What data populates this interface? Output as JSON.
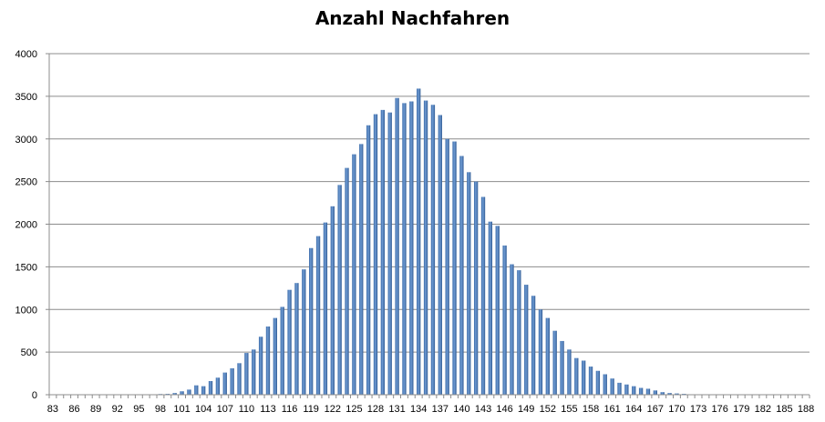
{
  "chart_data": {
    "type": "bar",
    "title": "Anzahl Nachfahren",
    "xlabel": "",
    "ylabel": "",
    "ylim": [
      0,
      4000
    ],
    "yticks": [
      0,
      500,
      1000,
      1500,
      2000,
      2500,
      3000,
      3500,
      4000
    ],
    "xtick_labels": [
      "83",
      "86",
      "89",
      "92",
      "95",
      "98",
      "101",
      "104",
      "107",
      "110",
      "113",
      "116",
      "119",
      "122",
      "125",
      "128",
      "131",
      "134",
      "137",
      "140",
      "143",
      "146",
      "149",
      "152",
      "155",
      "158",
      "161",
      "164",
      "167",
      "170",
      "173",
      "176",
      "179",
      "182",
      "185",
      "188"
    ],
    "grid": true,
    "legend": "none",
    "bar_color": "#4f81bd",
    "categories": [
      83,
      84,
      85,
      86,
      87,
      88,
      89,
      90,
      91,
      92,
      93,
      94,
      95,
      96,
      97,
      98,
      99,
      100,
      101,
      102,
      103,
      104,
      105,
      106,
      107,
      108,
      109,
      110,
      111,
      112,
      113,
      114,
      115,
      116,
      117,
      118,
      119,
      120,
      121,
      122,
      123,
      124,
      125,
      126,
      127,
      128,
      129,
      130,
      131,
      132,
      133,
      134,
      135,
      136,
      137,
      138,
      139,
      140,
      141,
      142,
      143,
      144,
      145,
      146,
      147,
      148,
      149,
      150,
      151,
      152,
      153,
      154,
      155,
      156,
      157,
      158,
      159,
      160,
      161,
      162,
      163,
      164,
      165,
      166,
      167,
      168,
      169,
      170,
      171,
      172,
      173,
      174,
      175,
      176,
      177,
      178,
      179,
      180,
      181,
      182,
      183,
      184,
      185,
      186,
      187,
      188
    ],
    "values": [
      0,
      0,
      0,
      0,
      0,
      0,
      0,
      0,
      0,
      0,
      0,
      0,
      2,
      3,
      5,
      8,
      10,
      20,
      40,
      60,
      110,
      100,
      160,
      200,
      260,
      310,
      370,
      490,
      530,
      680,
      800,
      900,
      1030,
      1230,
      1310,
      1470,
      1720,
      1860,
      2020,
      2210,
      2460,
      2660,
      2820,
      2940,
      3160,
      3290,
      3340,
      3310,
      3480,
      3420,
      3440,
      3590,
      3450,
      3400,
      3280,
      3000,
      2970,
      2800,
      2610,
      2500,
      2320,
      2030,
      1980,
      1750,
      1530,
      1460,
      1290,
      1160,
      1000,
      900,
      750,
      630,
      530,
      430,
      400,
      330,
      280,
      240,
      190,
      140,
      120,
      100,
      80,
      70,
      50,
      30,
      20,
      15,
      10,
      5,
      5,
      3,
      2,
      2,
      1,
      1,
      0,
      0,
      0,
      0,
      0,
      0,
      0,
      0,
      0,
      0
    ]
  }
}
